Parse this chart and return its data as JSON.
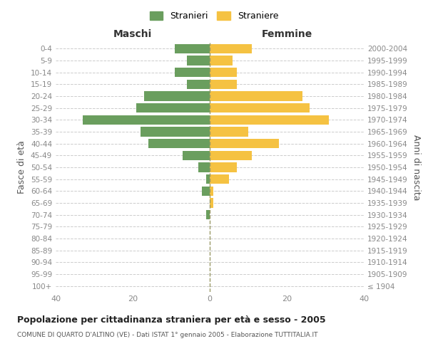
{
  "age_groups": [
    "100+",
    "95-99",
    "90-94",
    "85-89",
    "80-84",
    "75-79",
    "70-74",
    "65-69",
    "60-64",
    "55-59",
    "50-54",
    "45-49",
    "40-44",
    "35-39",
    "30-34",
    "25-29",
    "20-24",
    "15-19",
    "10-14",
    "5-9",
    "0-4"
  ],
  "birth_years": [
    "≤ 1904",
    "1905-1909",
    "1910-1914",
    "1915-1919",
    "1920-1924",
    "1925-1929",
    "1930-1934",
    "1935-1939",
    "1940-1944",
    "1945-1949",
    "1950-1954",
    "1955-1959",
    "1960-1964",
    "1965-1969",
    "1970-1974",
    "1975-1979",
    "1980-1984",
    "1985-1989",
    "1990-1994",
    "1995-1999",
    "2000-2004"
  ],
  "maschi": [
    0,
    0,
    0,
    0,
    0,
    0,
    1,
    0,
    2,
    1,
    3,
    7,
    16,
    18,
    33,
    19,
    17,
    6,
    9,
    6,
    9
  ],
  "femmine": [
    0,
    0,
    0,
    0,
    0,
    0,
    0,
    1,
    1,
    5,
    7,
    11,
    18,
    10,
    31,
    26,
    24,
    7,
    7,
    6,
    11
  ],
  "maschi_color": "#6a9e5e",
  "femmine_color": "#f5c242",
  "title": "Popolazione per cittadinanza straniera per età e sesso - 2005",
  "subtitle": "COMUNE DI QUARTO D'ALTINO (VE) - Dati ISTAT 1° gennaio 2005 - Elaborazione TUTTITALIA.IT",
  "xlabel_left": "Maschi",
  "xlabel_right": "Femmine",
  "ylabel_left": "Fasce di età",
  "ylabel_right": "Anni di nascita",
  "legend_maschi": "Stranieri",
  "legend_femmine": "Straniere",
  "xlim": 40,
  "background_color": "#ffffff",
  "grid_color": "#cccccc",
  "bar_height": 0.8
}
